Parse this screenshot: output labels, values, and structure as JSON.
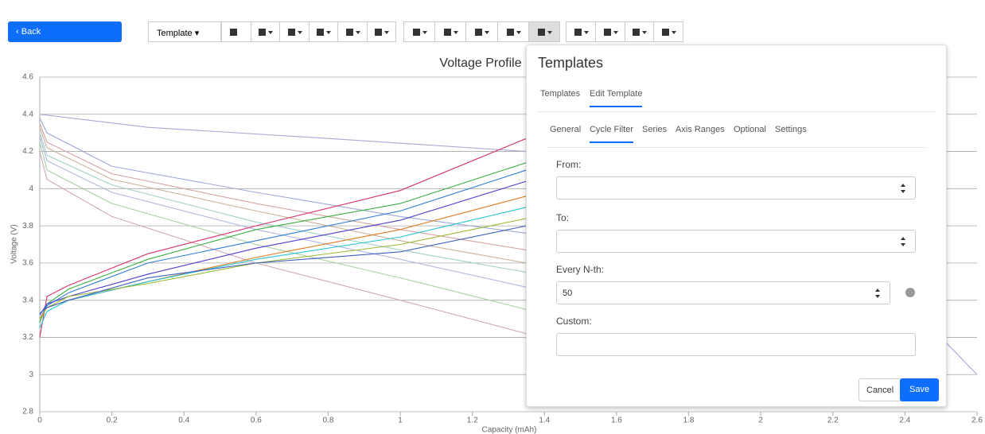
{
  "toolbar": {
    "back": "Back",
    "template": "Template"
  },
  "chart_data": {
    "type": "line",
    "title": "Voltage Profile",
    "x_label": "Capacity (mAh)",
    "y_label": "Voltage (V)",
    "xlim": [
      0,
      2.6
    ],
    "ylim": [
      2.8,
      4.6
    ],
    "xticks": [
      0,
      0.2,
      0.4,
      0.6,
      0.8,
      1,
      1.2,
      1.4,
      1.6,
      1.8,
      2,
      2.2,
      2.4,
      2.6
    ],
    "yticks": [
      2.8,
      3,
      3.2,
      3.4,
      3.6,
      3.8,
      4,
      4.2,
      4.4,
      4.6
    ],
    "grid": true,
    "series": [
      {
        "color": "#aaa8d4",
        "x": [
          0,
          0.3,
          0.8,
          1.35,
          2.0,
          2.5,
          2.6
        ],
        "values": [
          4.4,
          4.33,
          4.27,
          4.2,
          4.0,
          3.2,
          3.0
        ]
      },
      {
        "color": "#9fa8d8",
        "x": [
          0,
          0.02,
          0.2,
          0.6,
          1.0,
          1.35
        ],
        "values": [
          4.38,
          4.3,
          4.12,
          3.98,
          3.85,
          3.76
        ]
      },
      {
        "color": "#d4a3a3",
        "x": [
          0,
          0.02,
          0.2,
          0.6,
          1.0,
          1.35
        ],
        "values": [
          4.35,
          4.25,
          4.08,
          3.92,
          3.78,
          3.67
        ]
      },
      {
        "color": "#c9b39a",
        "x": [
          0,
          0.02,
          0.2,
          0.6,
          1.0,
          1.35
        ],
        "values": [
          4.33,
          4.22,
          4.05,
          3.88,
          3.72,
          3.6
        ]
      },
      {
        "color": "#a0d0c8",
        "x": [
          0,
          0.02,
          0.2,
          0.6,
          1.0,
          1.35
        ],
        "values": [
          4.3,
          4.18,
          4.02,
          3.82,
          3.67,
          3.55
        ]
      },
      {
        "color": "#b0b8e0",
        "x": [
          0,
          0.02,
          0.2,
          0.6,
          1.0,
          1.35
        ],
        "values": [
          4.28,
          4.15,
          3.98,
          3.78,
          3.62,
          3.47
        ]
      },
      {
        "color": "#a8d0a0",
        "x": [
          0,
          0.02,
          0.2,
          0.6,
          1.0,
          1.35
        ],
        "values": [
          4.25,
          4.1,
          3.92,
          3.7,
          3.52,
          3.35
        ]
      },
      {
        "color": "#d0a8b8",
        "x": [
          0,
          0.02,
          0.2,
          0.6,
          1.0,
          1.35
        ],
        "values": [
          4.2,
          4.05,
          3.85,
          3.6,
          3.4,
          3.22
        ]
      },
      {
        "color": "#d6336c",
        "x": [
          0,
          0.02,
          0.08,
          0.3,
          0.6,
          1.0,
          1.35
        ],
        "values": [
          3.2,
          3.42,
          3.48,
          3.65,
          3.8,
          3.99,
          4.27
        ]
      },
      {
        "color": "#3cb043",
        "x": [
          0,
          0.02,
          0.08,
          0.3,
          0.6,
          1.0,
          1.35
        ],
        "values": [
          3.28,
          3.38,
          3.46,
          3.62,
          3.78,
          3.92,
          4.14
        ]
      },
      {
        "color": "#2f7ed8",
        "x": [
          0,
          0.02,
          0.08,
          0.3,
          0.6,
          1.0,
          1.35
        ],
        "values": [
          3.3,
          3.37,
          3.44,
          3.6,
          3.72,
          3.88,
          4.1
        ]
      },
      {
        "color": "#4b3fd1",
        "x": [
          0,
          0.02,
          0.08,
          0.3,
          0.6,
          1.0,
          1.35
        ],
        "values": [
          3.32,
          3.38,
          3.42,
          3.54,
          3.68,
          3.83,
          4.04
        ]
      },
      {
        "color": "#e07b1f",
        "x": [
          0,
          0.02,
          0.08,
          0.3,
          0.6,
          1.0,
          1.35
        ],
        "values": [
          3.3,
          3.36,
          3.4,
          3.5,
          3.63,
          3.78,
          3.96
        ]
      },
      {
        "color": "#29c4d0",
        "x": [
          0,
          0.02,
          0.08,
          0.3,
          0.6,
          1.0,
          1.35
        ],
        "values": [
          3.25,
          3.34,
          3.4,
          3.5,
          3.62,
          3.74,
          3.9
        ]
      },
      {
        "color": "#9ab830",
        "x": [
          0,
          0.02,
          0.08,
          0.3,
          0.6,
          1.0,
          1.35
        ],
        "values": [
          3.3,
          3.36,
          3.42,
          3.49,
          3.6,
          3.7,
          3.84
        ]
      },
      {
        "color": "#4060c0",
        "x": [
          0,
          0.02,
          0.08,
          0.3,
          0.6,
          1.0,
          1.35
        ],
        "values": [
          3.33,
          3.36,
          3.4,
          3.52,
          3.6,
          3.66,
          3.8
        ]
      }
    ]
  },
  "modal": {
    "title": "Templates",
    "tabs": [
      "Templates",
      "Edit Template"
    ],
    "subtabs": [
      "General",
      "Cycle Filter",
      "Series",
      "Axis Ranges",
      "Optional",
      "Settings"
    ],
    "fields": [
      {
        "label": "From:",
        "value": ""
      },
      {
        "label": "To:",
        "value": ""
      },
      {
        "label": "Every N-th:",
        "value": "50"
      },
      {
        "label": "Custom:",
        "value": ""
      }
    ],
    "cancel": "Cancel",
    "save": "Save"
  }
}
